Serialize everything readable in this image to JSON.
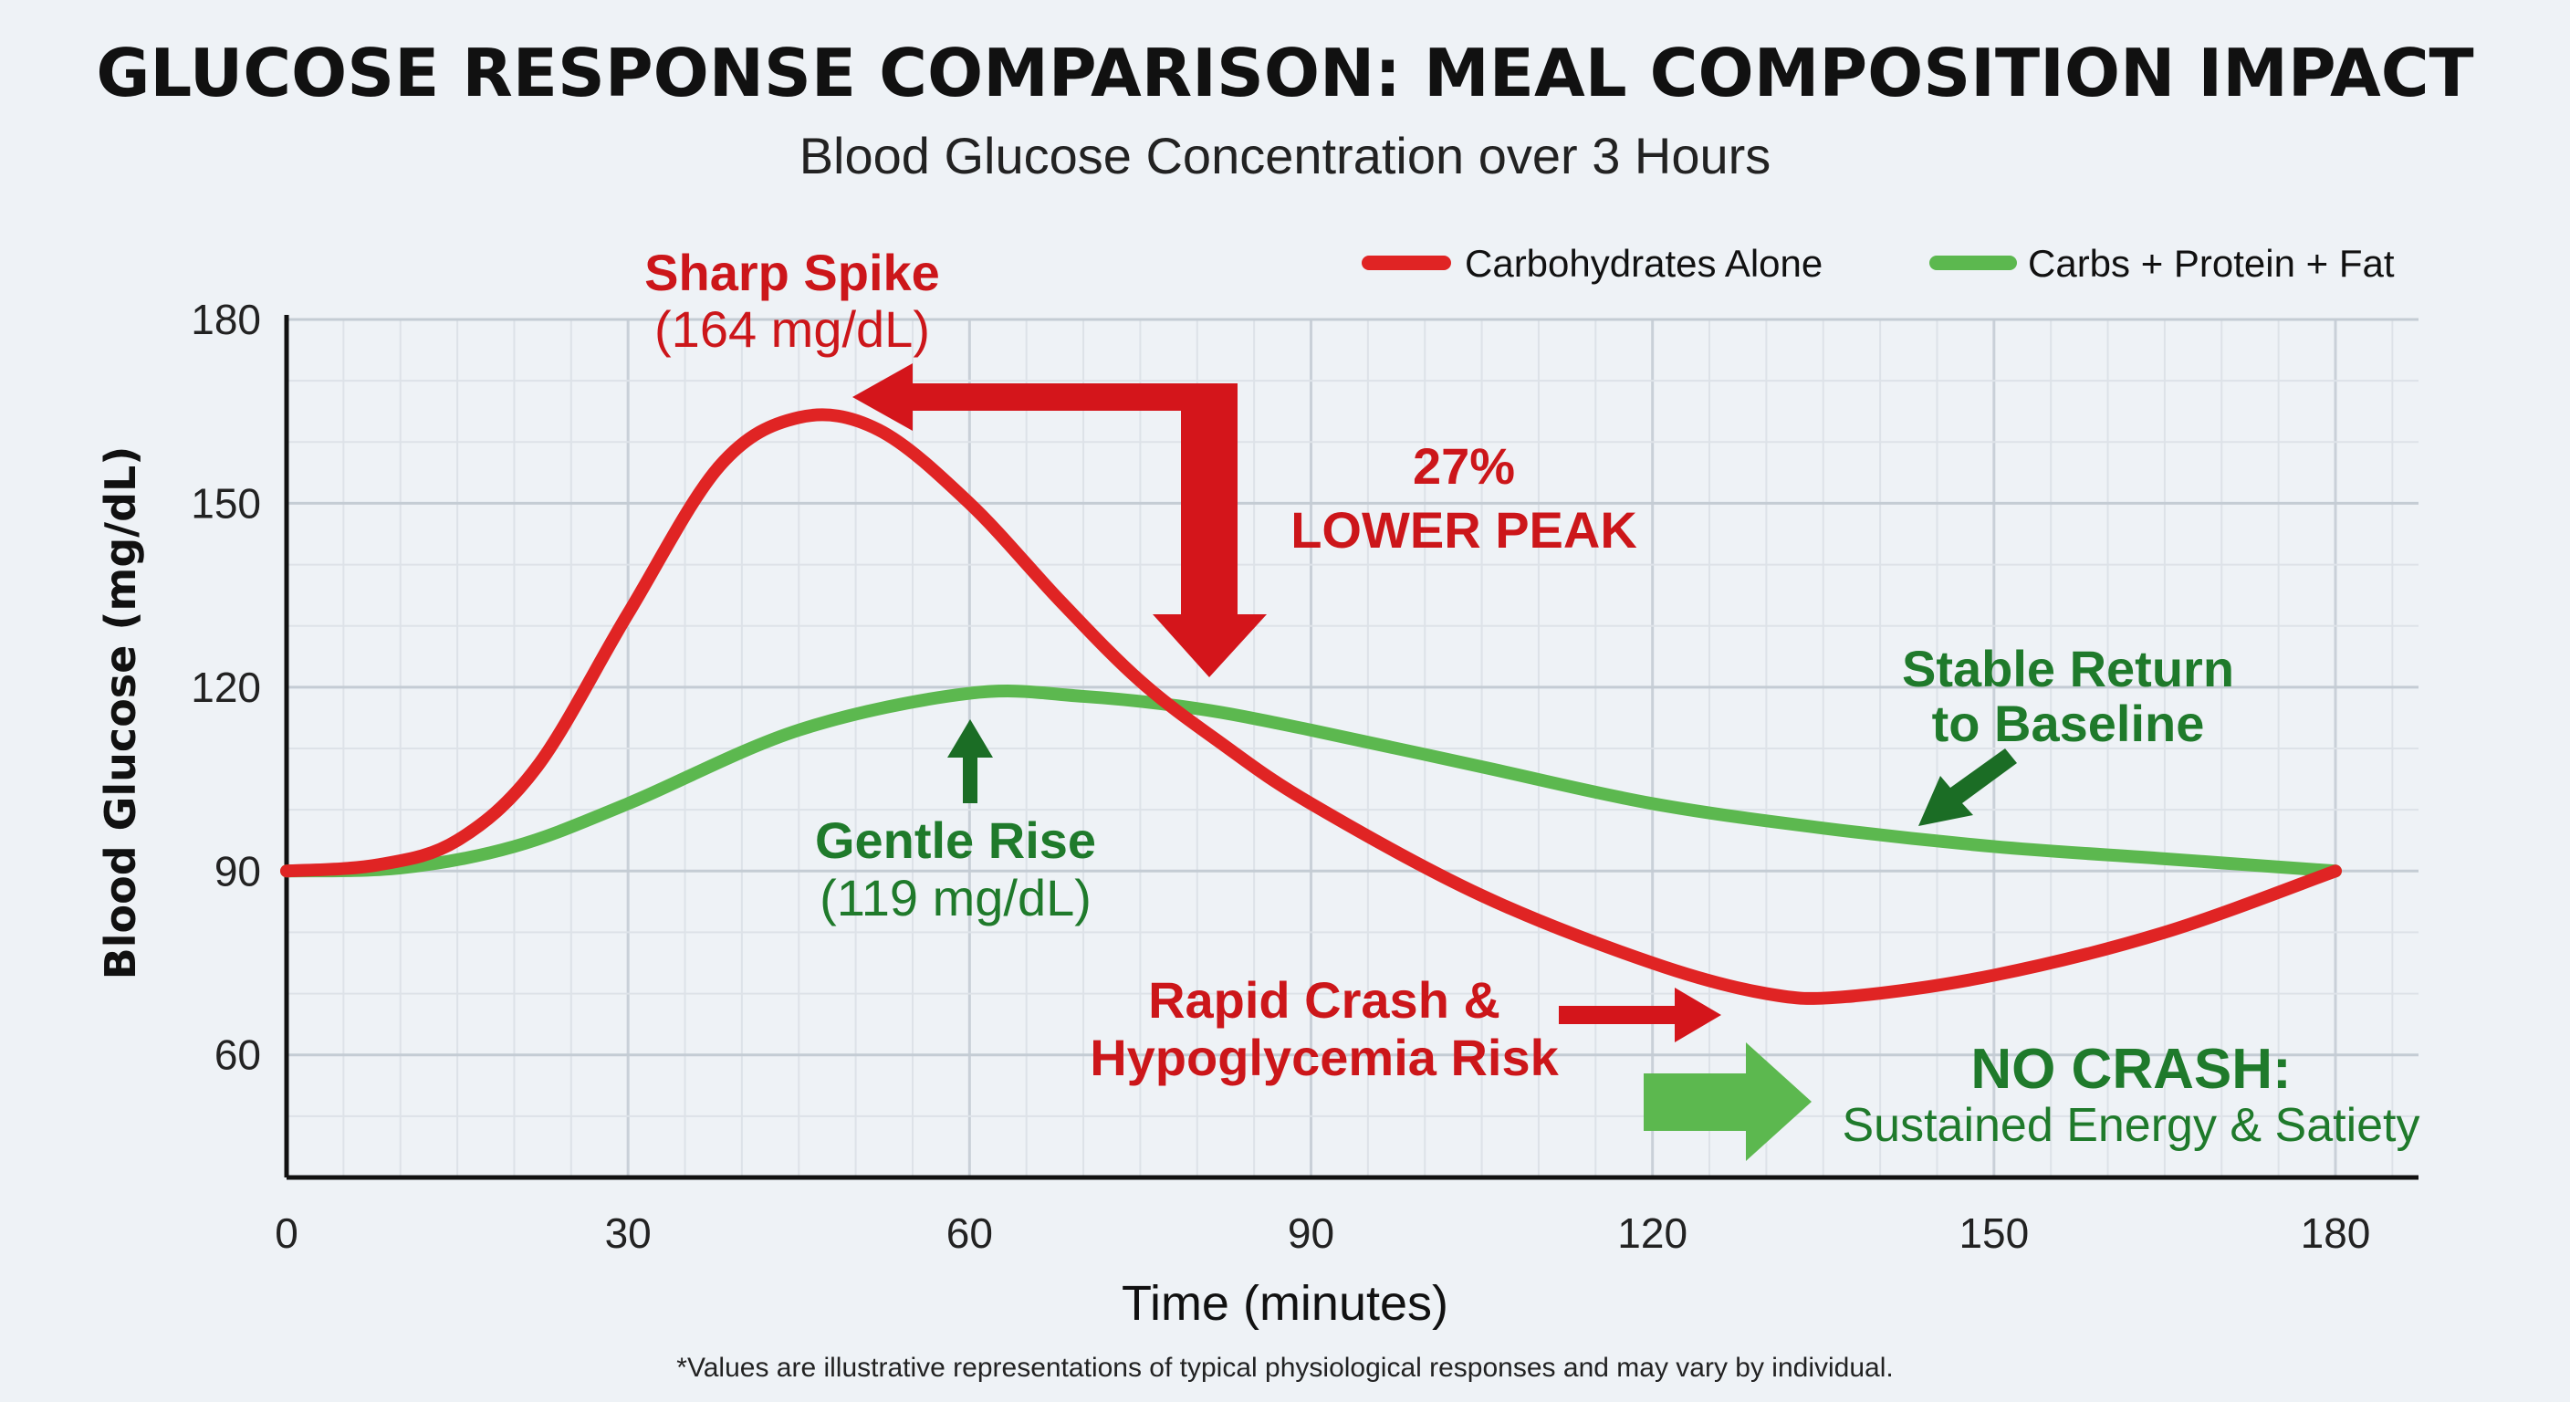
{
  "colors": {
    "carbs": "#e02424",
    "mixed": "#5cb84f",
    "red_text": "#cc161a",
    "green_text": "#1f7a2b",
    "green_arrow": "#1b6d25",
    "background": "#eef2f6"
  },
  "chart_data": {
    "type": "line",
    "title": "GLUCOSE RESPONSE COMPARISON: MEAL COMPOSITION IMPACT",
    "subtitle": "Blood Glucose Concentration over 3 Hours",
    "xlabel": "Time (minutes)",
    "ylabel": "Blood Glucose (mg/dL)",
    "xlim": [
      0,
      187
    ],
    "ylim": [
      40,
      180
    ],
    "xticks": [
      0,
      30,
      60,
      90,
      120,
      150,
      180
    ],
    "yticks": [
      60,
      90,
      120,
      150,
      180
    ],
    "grid": true,
    "legend_position": "top-right",
    "series": [
      {
        "name": "Carbohydrates Alone",
        "color": "#e02424",
        "x": [
          0,
          8,
          15,
          22,
          30,
          38,
          45,
          52,
          60,
          68,
          75,
          82,
          90,
          105,
          120,
          130,
          137,
          150,
          165,
          180
        ],
        "y": [
          90,
          91,
          95,
          107,
          132,
          156,
          164,
          162,
          150,
          134,
          121,
          111,
          101,
          86,
          75,
          70,
          69.5,
          73,
          80,
          90
        ]
      },
      {
        "name": "Carbs + Protein + Fat",
        "color": "#5cb84f",
        "x": [
          0,
          10,
          20,
          30,
          45,
          60,
          70,
          80,
          90,
          105,
          120,
          135,
          150,
          165,
          180
        ],
        "y": [
          90,
          90.5,
          94,
          101,
          113,
          119,
          118.5,
          116.5,
          113,
          107,
          101,
          97,
          94,
          92,
          90
        ]
      }
    ],
    "annotations": {
      "spike_title": "Sharp Spike",
      "spike_value": "(164 mg/dL)",
      "lower_pct": "27%",
      "lower_text": "LOWER PEAK",
      "gentle_title": "Gentle Rise",
      "gentle_value": "(119 mg/dL)",
      "stable_1": "Stable Return",
      "stable_2": "to Baseline",
      "crash_1": "Rapid Crash &",
      "crash_2": "Hypoglycemia Risk",
      "nocrash_1": "NO CRASH:",
      "nocrash_2": "Sustained Energy & Satiety"
    },
    "footnote": "*Values are illustrative representations of typical physiological responses and may vary by individual."
  }
}
